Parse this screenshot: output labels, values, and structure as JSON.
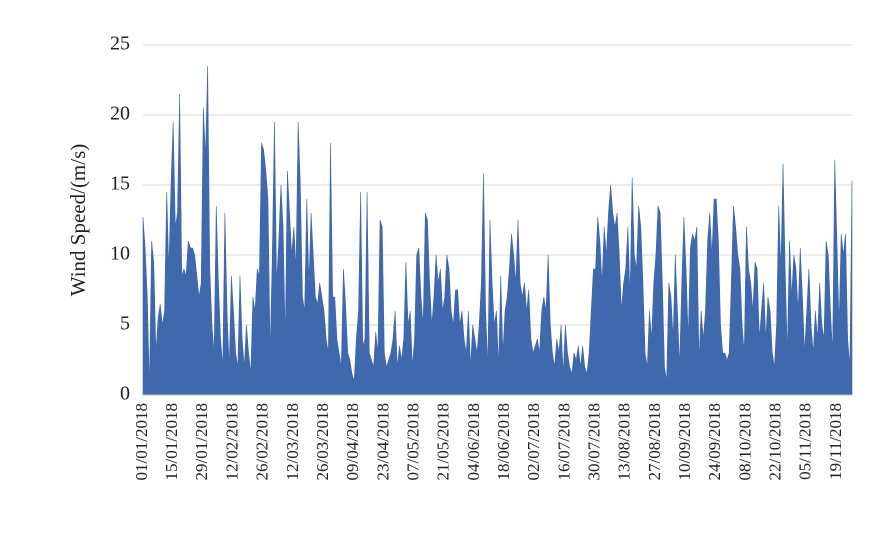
{
  "chart_data": {
    "type": "area",
    "ylabel": "Wind Speed/(m/s)",
    "color": "#4068ad",
    "grid": true,
    "ylim": [
      0,
      25
    ],
    "yticks": [
      0,
      5,
      10,
      15,
      20,
      25
    ],
    "categories": [
      "01/01/2018",
      null,
      null,
      null,
      null,
      null,
      null,
      null,
      null,
      null,
      null,
      null,
      null,
      null,
      "15/01/2018",
      null,
      null,
      null,
      null,
      null,
      null,
      null,
      null,
      null,
      null,
      null,
      null,
      null,
      "29/01/2018",
      null,
      null,
      null,
      null,
      null,
      null,
      null,
      null,
      null,
      null,
      null,
      null,
      null,
      "12/02/2018",
      null,
      null,
      null,
      null,
      null,
      null,
      null,
      null,
      null,
      null,
      null,
      null,
      null,
      "26/02/2018",
      null,
      null,
      null,
      null,
      null,
      null,
      null,
      null,
      null,
      null,
      null,
      null,
      null,
      "12/03/2018",
      null,
      null,
      null,
      null,
      null,
      null,
      null,
      null,
      null,
      null,
      null,
      null,
      null,
      "26/03/2018",
      null,
      null,
      null,
      null,
      null,
      null,
      null,
      null,
      null,
      null,
      null,
      null,
      null,
      "09/04/2018",
      null,
      null,
      null,
      null,
      null,
      null,
      null,
      null,
      null,
      null,
      null,
      null,
      null,
      "23/04/2018",
      null,
      null,
      null,
      null,
      null,
      null,
      null,
      null,
      null,
      null,
      null,
      null,
      null,
      "07/05/2018",
      null,
      null,
      null,
      null,
      null,
      null,
      null,
      null,
      null,
      null,
      null,
      null,
      null,
      "21/05/2018",
      null,
      null,
      null,
      null,
      null,
      null,
      null,
      null,
      null,
      null,
      null,
      null,
      null,
      "04/06/2018",
      null,
      null,
      null,
      null,
      null,
      null,
      null,
      null,
      null,
      null,
      null,
      null,
      null,
      "18/06/2018",
      null,
      null,
      null,
      null,
      null,
      null,
      null,
      null,
      null,
      null,
      null,
      null,
      null,
      "02/07/2018",
      null,
      null,
      null,
      null,
      null,
      null,
      null,
      null,
      null,
      null,
      null,
      null,
      null,
      "16/07/2018",
      null,
      null,
      null,
      null,
      null,
      null,
      null,
      null,
      null,
      null,
      null,
      null,
      null,
      "30/07/2018",
      null,
      null,
      null,
      null,
      null,
      null,
      null,
      null,
      null,
      null,
      null,
      null,
      null,
      "13/08/2018",
      null,
      null,
      null,
      null,
      null,
      null,
      null,
      null,
      null,
      null,
      null,
      null,
      null,
      "27/08/2018",
      null,
      null,
      null,
      null,
      null,
      null,
      null,
      null,
      null,
      null,
      null,
      null,
      null,
      "10/09/2018",
      null,
      null,
      null,
      null,
      null,
      null,
      null,
      null,
      null,
      null,
      null,
      null,
      null,
      "24/09/2018",
      null,
      null,
      null,
      null,
      null,
      null,
      null,
      null,
      null,
      null,
      null,
      null,
      null,
      "08/10/2018",
      null,
      null,
      null,
      null,
      null,
      null,
      null,
      null,
      null,
      null,
      null,
      null,
      null,
      "22/10/2018",
      null,
      null,
      null,
      null,
      null,
      null,
      null,
      null,
      null,
      null,
      null,
      null,
      null,
      "05/11/2018",
      null,
      null,
      null,
      null,
      null,
      null,
      null,
      null,
      null,
      null,
      null,
      null,
      null,
      "19/11/2018",
      null,
      null,
      null,
      null,
      null,
      null,
      null
    ],
    "values": [
      12.7,
      10.5,
      7,
      0.5,
      11,
      9.5,
      3,
      5.5,
      6.5,
      5,
      6,
      14.5,
      9,
      15,
      19.5,
      12,
      13,
      21.5,
      8.5,
      9,
      8.5,
      11,
      10.5,
      10.5,
      10,
      8.5,
      7,
      8,
      20.5,
      17,
      23.5,
      9,
      5,
      3,
      13.5,
      8,
      4,
      2,
      13,
      6,
      2,
      8.5,
      6,
      3,
      2,
      8.5,
      4,
      2,
      5,
      3,
      1.5,
      7,
      6,
      9,
      8.5,
      18,
      17.5,
      16,
      14,
      3,
      10,
      19.5,
      8,
      11,
      15,
      12,
      4,
      16,
      13,
      10,
      12,
      9,
      19.5,
      15,
      7,
      6,
      14,
      8,
      13,
      10,
      7,
      6.5,
      8,
      7,
      6,
      4,
      3,
      18,
      7,
      7,
      4,
      3,
      2,
      9,
      6.5,
      3,
      2.5,
      1.5,
      1,
      4,
      6,
      14.5,
      3.5,
      4,
      14.5,
      3,
      2.5,
      2,
      4.5,
      3,
      12.5,
      12,
      3,
      2,
      2.5,
      3,
      4,
      6,
      2,
      3.5,
      2.5,
      4,
      9.5,
      5,
      6,
      2,
      4,
      10,
      10.5,
      7,
      5,
      13,
      12.5,
      8,
      5,
      7,
      10,
      8,
      9,
      6,
      7,
      10,
      9,
      6,
      5,
      7.5,
      7.5,
      5,
      6,
      4,
      3,
      6,
      2,
      5,
      4,
      3,
      5,
      8,
      15.8,
      6,
      2,
      12.5,
      8,
      5,
      6,
      2,
      8.5,
      3,
      6,
      7,
      9,
      11.5,
      10,
      8,
      12.5,
      8,
      7,
      8,
      6,
      7.5,
      4,
      3,
      3.5,
      4,
      3,
      6,
      7,
      6,
      10,
      5,
      3,
      2,
      4,
      3,
      5,
      1.5,
      5,
      3,
      2,
      1.5,
      3,
      2.5,
      3.5,
      2,
      3.5,
      2,
      1.5,
      3,
      6,
      9,
      9,
      12.7,
      11,
      8,
      12,
      10,
      13,
      15,
      13,
      12,
      13,
      10,
      6,
      8,
      9,
      12,
      7,
      15.5,
      10,
      9,
      13.5,
      12,
      8,
      3,
      2,
      6,
      4,
      8,
      10,
      13.5,
      13,
      8,
      2,
      1,
      8,
      7,
      4,
      10,
      6,
      2,
      8,
      12.7,
      9,
      4,
      10.5,
      11.5,
      11,
      12,
      2.5,
      6,
      4,
      6,
      11,
      13,
      10,
      14,
      14,
      11,
      5,
      3,
      3,
      2.5,
      3,
      8,
      13.5,
      12,
      10,
      9,
      5,
      3,
      12,
      9,
      8,
      6,
      9.5,
      9,
      4,
      6,
      8,
      4,
      7,
      6,
      3,
      2,
      5,
      13.5,
      9,
      16.5,
      9,
      3,
      11,
      7,
      10,
      9,
      6,
      10.5,
      7,
      3,
      6,
      9,
      5,
      3,
      6,
      4,
      8,
      5,
      4,
      11,
      10,
      6,
      3,
      16.8,
      11,
      5,
      11.5,
      10,
      11.5,
      4,
      2,
      15.3
    ]
  }
}
